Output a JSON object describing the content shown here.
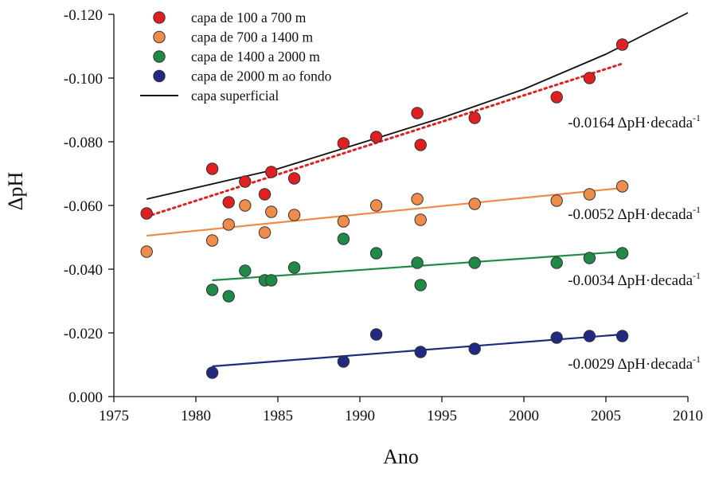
{
  "chart_data": {
    "type": "scatter",
    "xlabel": "Ano",
    "ylabel": "ΔpH",
    "xlim": [
      1975,
      2010
    ],
    "ylim": [
      0.0,
      -0.12
    ],
    "x_ticks": [
      1975,
      1980,
      1985,
      1990,
      1995,
      2000,
      2005,
      2010
    ],
    "x_tick_labels": [
      "1975",
      "1980",
      "1985",
      "1990",
      "1995",
      "2000",
      "2005",
      "2010"
    ],
    "y_ticks": [
      0.0,
      -0.02,
      -0.04,
      -0.06,
      -0.08,
      -0.1,
      -0.12
    ],
    "y_tick_labels": [
      "0.000",
      "-0.020",
      "-0.040",
      "-0.060",
      "-0.080",
      "-0.100",
      "-0.120"
    ],
    "grid": false,
    "legend_position": "top-left",
    "series": [
      {
        "name": "capa de 100 a 700 m",
        "color": "#e02020",
        "points": [
          [
            1977,
            -0.0575
          ],
          [
            1981,
            -0.0715
          ],
          [
            1982,
            -0.061
          ],
          [
            1983,
            -0.0675
          ],
          [
            1984.2,
            -0.0635
          ],
          [
            1984.6,
            -0.0705
          ],
          [
            1986,
            -0.0685
          ],
          [
            1989,
            -0.0795
          ],
          [
            1991,
            -0.0815
          ],
          [
            1993.5,
            -0.089
          ],
          [
            1993.7,
            -0.079
          ],
          [
            1997,
            -0.0875
          ],
          [
            2002,
            -0.094
          ],
          [
            2004,
            -0.1
          ],
          [
            2006,
            -0.1105
          ]
        ],
        "trend": {
          "x": [
            1977,
            2006
          ],
          "y": [
            -0.0565,
            -0.1045
          ],
          "style": "dotted"
        },
        "annotation": "-0.0164 ΔpH·decada",
        "annotation_sup": "-1"
      },
      {
        "name": "capa de 700 a 1400 m",
        "color": "#f08c4a",
        "points": [
          [
            1977,
            -0.0455
          ],
          [
            1981,
            -0.049
          ],
          [
            1982,
            -0.054
          ],
          [
            1983,
            -0.06
          ],
          [
            1984.2,
            -0.0515
          ],
          [
            1984.6,
            -0.058
          ],
          [
            1986,
            -0.057
          ],
          [
            1989,
            -0.055
          ],
          [
            1991,
            -0.06
          ],
          [
            1993.5,
            -0.062
          ],
          [
            1993.7,
            -0.0555
          ],
          [
            1997,
            -0.0605
          ],
          [
            2002,
            -0.0615
          ],
          [
            2004,
            -0.0635
          ],
          [
            2006,
            -0.066
          ]
        ],
        "trend": {
          "x": [
            1977,
            2006
          ],
          "y": [
            -0.0505,
            -0.0655
          ],
          "style": "solid"
        },
        "annotation": "-0.0052 ΔpH·decada",
        "annotation_sup": "-1"
      },
      {
        "name": "capa de 1400 a 2000 m",
        "color": "#1f8a48",
        "points": [
          [
            1981,
            -0.0335
          ],
          [
            1982,
            -0.0315
          ],
          [
            1983,
            -0.0395
          ],
          [
            1984.2,
            -0.0365
          ],
          [
            1984.6,
            -0.0365
          ],
          [
            1986,
            -0.0405
          ],
          [
            1989,
            -0.0495
          ],
          [
            1991,
            -0.045
          ],
          [
            1993.5,
            -0.042
          ],
          [
            1993.7,
            -0.035
          ],
          [
            1997,
            -0.042
          ],
          [
            2002,
            -0.042
          ],
          [
            2004,
            -0.0435
          ],
          [
            2006,
            -0.045
          ]
        ],
        "trend": {
          "x": [
            1981,
            2006
          ],
          "y": [
            -0.0365,
            -0.0455
          ],
          "style": "solid"
        },
        "annotation": "-0.0034 ΔpH·decada",
        "annotation_sup": "-1"
      },
      {
        "name": "capa de 2000 m ao fondo",
        "color": "#1f2a80",
        "points": [
          [
            1981,
            -0.0075
          ],
          [
            1989,
            -0.011
          ],
          [
            1991,
            -0.0195
          ],
          [
            1993.7,
            -0.014
          ],
          [
            1997,
            -0.015
          ],
          [
            2002,
            -0.0185
          ],
          [
            2004,
            -0.019
          ],
          [
            2006,
            -0.019
          ]
        ],
        "trend": {
          "x": [
            1981,
            2006
          ],
          "y": [
            -0.0095,
            -0.0195
          ],
          "style": "solid"
        },
        "annotation": "-0.0029 ΔpH·decada",
        "annotation_sup": "-1"
      }
    ],
    "reference_line": {
      "name": "capa superficial",
      "color": "#111111",
      "x": [
        1977,
        1985,
        1990,
        1995,
        2000,
        2005,
        2010
      ],
      "y": [
        -0.062,
        -0.0715,
        -0.0795,
        -0.0875,
        -0.0965,
        -0.1075,
        -0.1205
      ]
    }
  }
}
